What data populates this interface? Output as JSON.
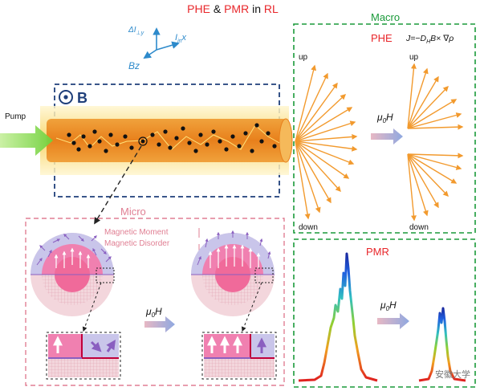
{
  "title": {
    "part1": "PHE",
    "amp": " & ",
    "part2": "PMR",
    "mid": " in ",
    "part3": "RL"
  },
  "axes": {
    "dI": "ΔI",
    "dI_sub": "⊥y",
    "Iin": "I",
    "Iin_sub": "in",
    "x": "x",
    "bz": "Bz"
  },
  "b_field": "B",
  "pump": "Pump",
  "micro": {
    "title": "Micro",
    "legend_moment": "Magnetic Moment",
    "legend_disorder": "Magnetic Disorder",
    "mu0h": "μ",
    "mu0h_sub": "0",
    "mu0h_h": "H"
  },
  "macro": {
    "title": "Macro",
    "phe_label": "PHE",
    "formula": "J=−D",
    "formula_sub": "H",
    "formula_rest": "B× ∇ρ",
    "up_left": "up",
    "down_left": "down",
    "up_right": "up",
    "down_right": "down",
    "mu0h": "μ",
    "mu0h_sub": "0",
    "mu0h_h": "H"
  },
  "pmr": {
    "title": "PMR",
    "mu0h": "μ",
    "mu0h_sub": "0",
    "mu0h_h": "H"
  },
  "watermark": "安徽大学",
  "colors": {
    "red": "#e8262a",
    "green": "#1a9a3a",
    "navy": "#1f3f7a",
    "pink": "#e07f93",
    "orange": "#f29a2e"
  }
}
